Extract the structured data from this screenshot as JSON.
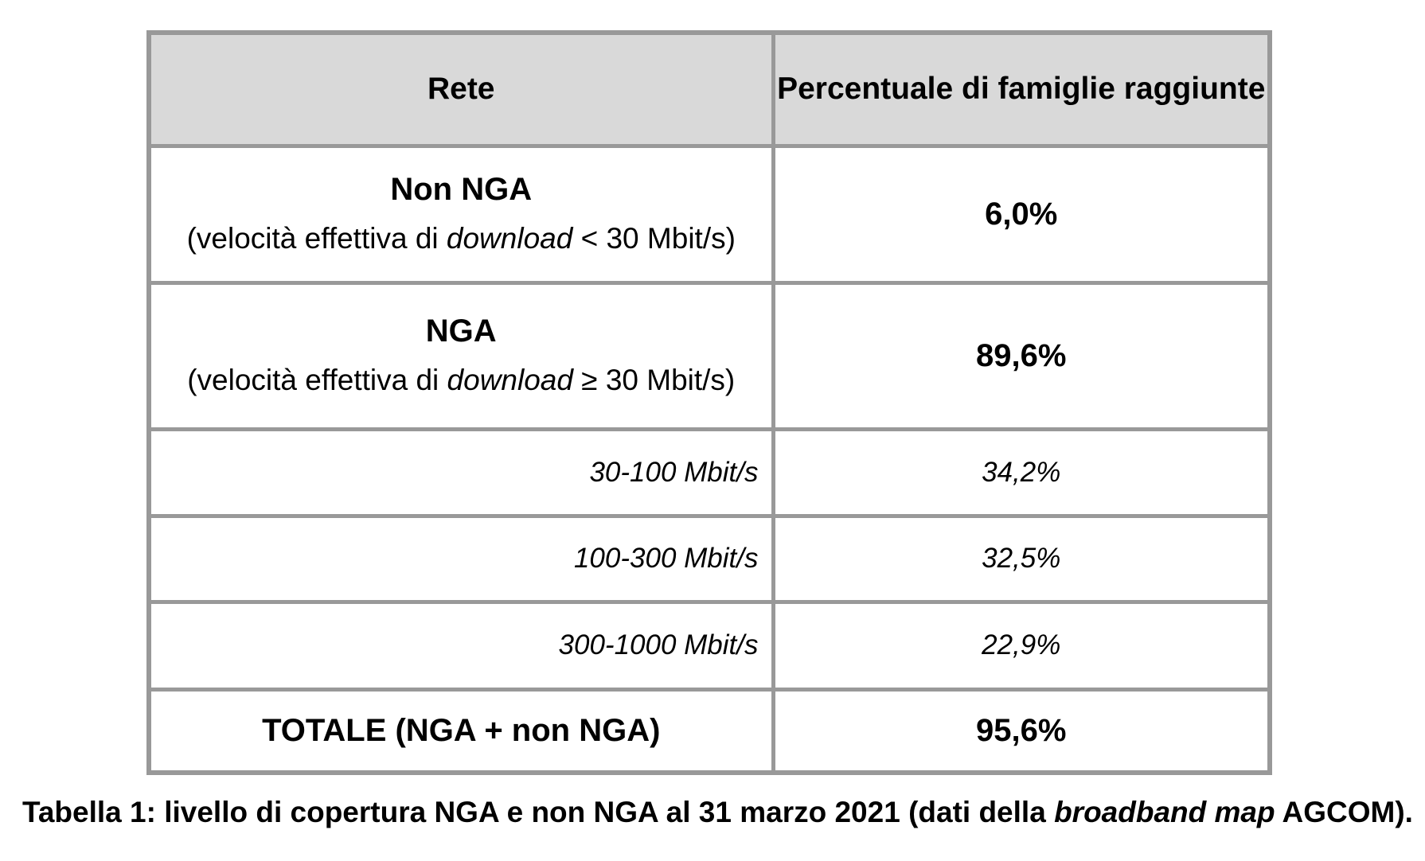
{
  "table": {
    "header": {
      "rete": "Rete",
      "percentuale": "Percentuale di famiglie raggiunte"
    },
    "rows": {
      "non_nga": {
        "title": "Non NGA",
        "detail_pre": "(velocità effettiva di ",
        "detail_italic": "download",
        "detail_post": " < 30 Mbit/s)",
        "value": "6,0%"
      },
      "nga": {
        "title": "NGA",
        "detail_pre": "(velocità effettiva di ",
        "detail_italic": "download",
        "detail_post": " ≥ 30 Mbit/s)",
        "value": "89,6%"
      },
      "band_30_100": {
        "label": "30-100 Mbit/s",
        "value": "34,2%"
      },
      "band_100_300": {
        "label": "100-300 Mbit/s",
        "value": "32,5%"
      },
      "band_300_1000": {
        "label": "300-1000 Mbit/s",
        "value": "22,9%"
      },
      "totale": {
        "label": "TOTALE (NGA + non NGA)",
        "value": "95,6%"
      }
    }
  },
  "caption": {
    "pre": "Tabella 1: livello di copertura NGA e non NGA al 31 marzo 2021 (dati della ",
    "italic": "broadband map",
    "post": " AGCOM)."
  },
  "colors": {
    "header_bg": "#d9d9d9",
    "border": "#999999",
    "text": "#000000",
    "page_bg": "#ffffff"
  }
}
